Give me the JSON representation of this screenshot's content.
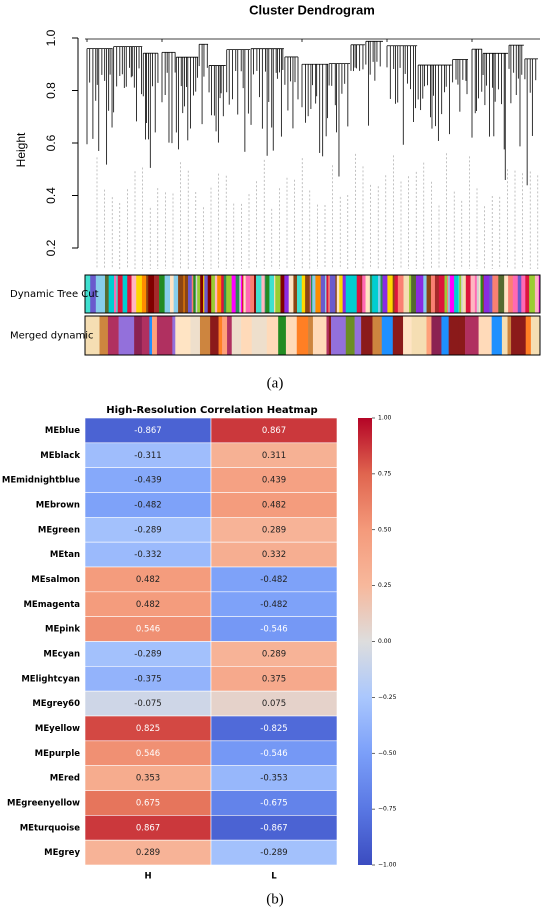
{
  "chart_data": [
    {
      "type": "dendrogram",
      "title": "Cluster Dendrogram",
      "ylabel": "Height",
      "ylim": [
        0.12,
        1.0
      ],
      "yticks": [
        0.2,
        0.4,
        0.6,
        0.8,
        {
          "value": 1,
          "label": "1.0"
        }
      ],
      "color_rows": [
        "Dynamic Tree Cut",
        "Merged dynamic"
      ],
      "panel_label": "(a)"
    },
    {
      "type": "heatmap",
      "title": "High-Resolution Correlation Heatmap",
      "rows": [
        "MEblue",
        "MEblack",
        "MEmidnightblue",
        "MEbrown",
        "MEgreen",
        "MEtan",
        "MEsalmon",
        "MEmagenta",
        "MEpink",
        "MEcyan",
        "MElightcyan",
        "MEgrey60",
        "MEyellow",
        "MEpurple",
        "MEred",
        "MEgreenyellow",
        "MEturquoise",
        "MEgrey"
      ],
      "columns": [
        "H",
        "L"
      ],
      "values": [
        [
          -0.867,
          0.867
        ],
        [
          -0.311,
          0.311
        ],
        [
          -0.439,
          0.439
        ],
        [
          -0.482,
          0.482
        ],
        [
          -0.289,
          0.289
        ],
        [
          -0.332,
          0.332
        ],
        [
          0.482,
          -0.482
        ],
        [
          0.482,
          -0.482
        ],
        [
          0.546,
          -0.546
        ],
        [
          -0.289,
          0.289
        ],
        [
          -0.375,
          0.375
        ],
        [
          -0.075,
          0.075
        ],
        [
          0.825,
          -0.825
        ],
        [
          0.546,
          -0.546
        ],
        [
          0.353,
          -0.353
        ],
        [
          0.675,
          -0.675
        ],
        [
          0.867,
          -0.867
        ],
        [
          0.289,
          -0.289
        ]
      ],
      "colormap": "coolwarm",
      "clim": [
        -1,
        1
      ],
      "cticks": [
        {
          "value": 1,
          "label": "1.00"
        },
        {
          "value": 0.75,
          "label": "0.75"
        },
        {
          "value": 0.5,
          "label": "0.50"
        },
        {
          "value": 0.25,
          "label": "0.25"
        },
        {
          "value": 0,
          "label": "0.00"
        },
        {
          "value": -0.25,
          "label": "−0.25"
        },
        {
          "value": -0.5,
          "label": "−0.50"
        },
        {
          "value": -0.75,
          "label": "−0.75"
        },
        {
          "value": -1,
          "label": "−1.00"
        }
      ],
      "panel_label": "(b)"
    }
  ]
}
